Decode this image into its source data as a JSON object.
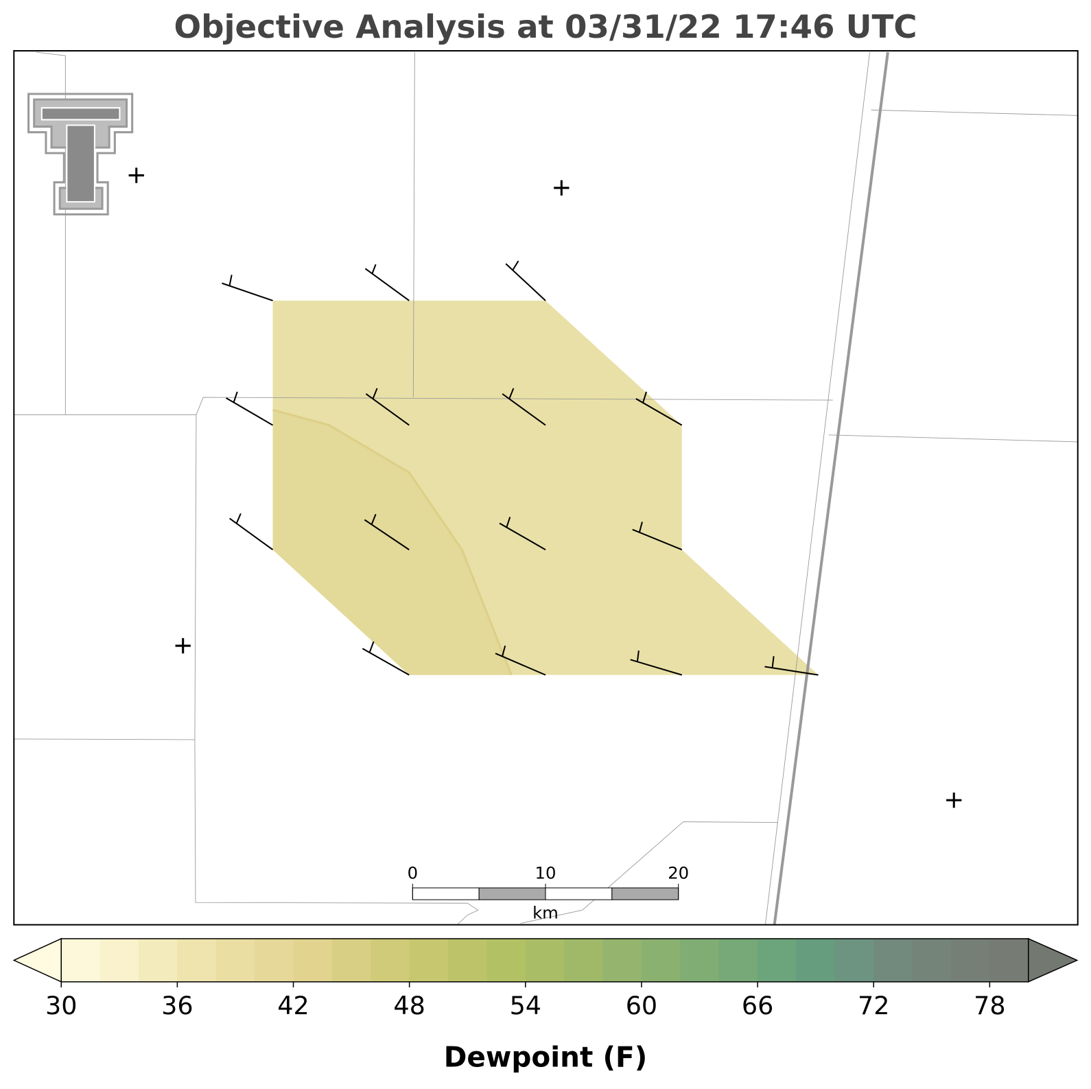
{
  "title": "Objective Analysis at 03/31/22 17:46 UTC",
  "scale_bar": {
    "labels": [
      "0",
      "10",
      "20"
    ],
    "unit": "km"
  },
  "colorbar": {
    "ticks": [
      30,
      36,
      42,
      48,
      54,
      60,
      66,
      72,
      78
    ],
    "label": "Dewpoint (F)"
  }
}
